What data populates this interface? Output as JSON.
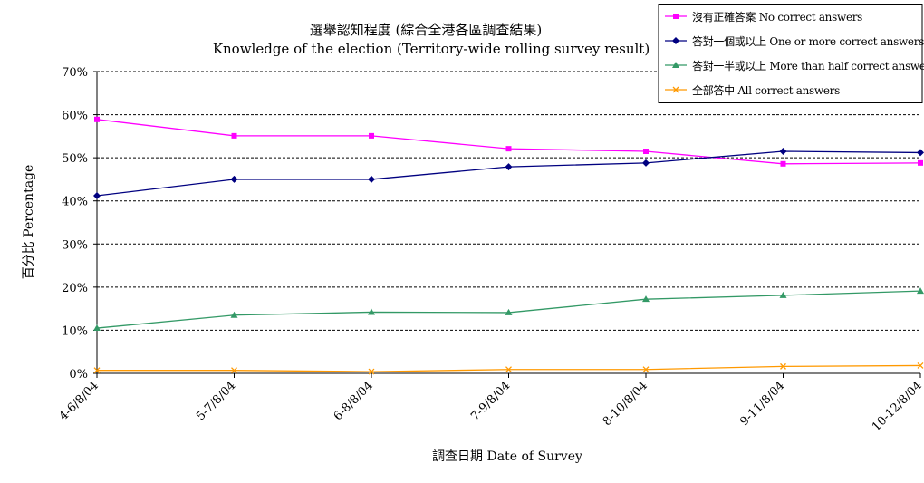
{
  "chart_data": {
    "type": "line",
    "title": "選舉認知程度 (綜合全港各區調查結果)",
    "subtitle": "Knowledge of the election (Territory-wide rolling survey result)",
    "xlabel": "調查日期 Date of Survey",
    "ylabel": "百分比 Percentage",
    "categories": [
      "4-6/8/04",
      "5-7/8/04",
      "6-8/8/04",
      "7-9/8/04",
      "8-10/8/04",
      "9-11/8/04",
      "10-12/8/04"
    ],
    "ylim": [
      0,
      70
    ],
    "yticks": [
      "0%",
      "10%",
      "20%",
      "30%",
      "40%",
      "50%",
      "60%",
      "70%"
    ],
    "grid": true,
    "legend_position": "top-right",
    "series": [
      {
        "name": "沒有正確答案 No correct answers",
        "color": "#ff00ff",
        "marker": "square",
        "values": [
          58.9,
          55.1,
          55.1,
          52.1,
          51.5,
          48.6,
          48.8
        ]
      },
      {
        "name": "答對一個或以上 One or more correct answers",
        "color": "#000080",
        "marker": "diamond",
        "values": [
          41.2,
          45.0,
          45.0,
          47.9,
          48.8,
          51.5,
          51.2
        ]
      },
      {
        "name": "答對一半或以上 More than half correct answers",
        "color": "#339966",
        "marker": "triangle",
        "values": [
          10.5,
          13.5,
          14.2,
          14.1,
          17.2,
          18.1,
          19.1
        ]
      },
      {
        "name": "全部答中 All correct answers",
        "color": "#ff9900",
        "marker": "x",
        "values": [
          0.7,
          0.7,
          0.4,
          0.9,
          0.9,
          1.6,
          1.8
        ]
      }
    ]
  }
}
